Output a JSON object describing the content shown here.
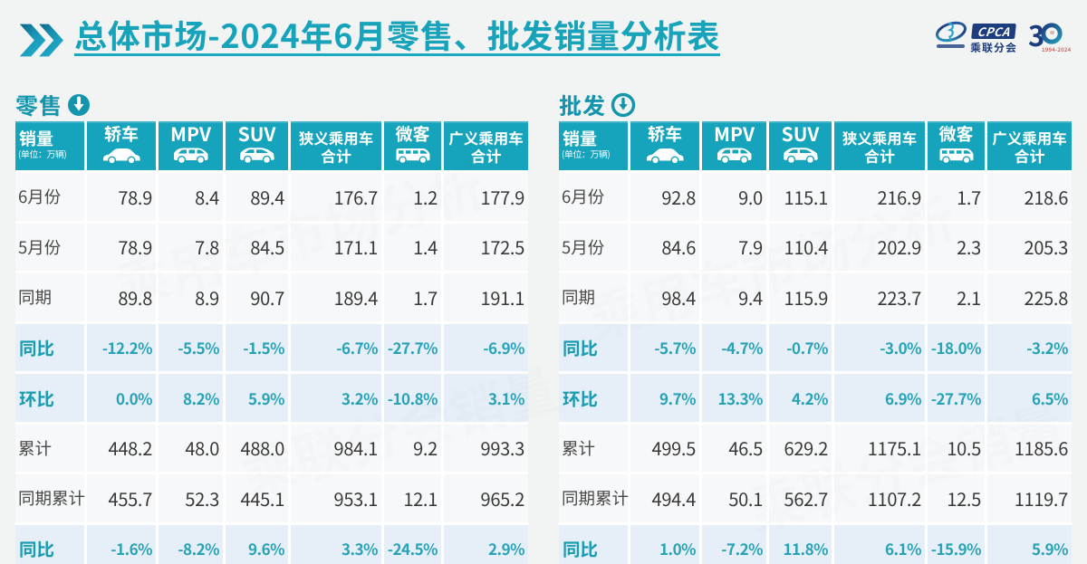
{
  "page": {
    "background": "#f2f3f3",
    "accent_teal": "#16a3bc",
    "highlight_row_bg": "#e6eff7",
    "navy": "#1c3c7c"
  },
  "header": {
    "title_prefix": "总体市场",
    "title_rest": "-2024年6月零售、批发销量分析表"
  },
  "logos": {
    "cpca": {
      "acronym": "CPCA",
      "branch": "乘联分会"
    },
    "anniversary": {
      "digit": "3",
      "years": "1994-2024"
    }
  },
  "tables": [
    {
      "section_label": "零售",
      "columns": [
        {
          "title": "销量",
          "subtitle": "(单位：万辆)"
        },
        {
          "title": "轿车",
          "icon": "sedan-icon"
        },
        {
          "title": "MPV",
          "icon": "mpv-icon"
        },
        {
          "title": "SUV",
          "icon": "suv-icon"
        },
        {
          "title": "狭义乘用车",
          "title2": "合计"
        },
        {
          "title": "微客",
          "icon": "minibus-icon"
        },
        {
          "title": "广义乘用车",
          "title2": "合计"
        }
      ],
      "rows": [
        {
          "label": "6月份",
          "highlight": false,
          "values": [
            "78.9",
            "8.4",
            "89.4",
            "176.7",
            "1.2",
            "177.9"
          ]
        },
        {
          "label": "5月份",
          "highlight": false,
          "values": [
            "78.9",
            "7.8",
            "84.5",
            "171.1",
            "1.4",
            "172.5"
          ]
        },
        {
          "label": "同期",
          "highlight": false,
          "values": [
            "89.8",
            "8.9",
            "90.7",
            "189.4",
            "1.7",
            "191.1"
          ]
        },
        {
          "label": "同比",
          "highlight": true,
          "values": [
            "-12.2%",
            "-5.5%",
            "-1.5%",
            "-6.7%",
            "-27.7%",
            "-6.9%"
          ]
        },
        {
          "label": "环比",
          "highlight": true,
          "values": [
            "0.0%",
            "8.2%",
            "5.9%",
            "3.2%",
            "-10.8%",
            "3.1%"
          ]
        },
        {
          "label": "累计",
          "highlight": false,
          "values": [
            "448.2",
            "48.0",
            "488.0",
            "984.1",
            "9.2",
            "993.3"
          ]
        },
        {
          "label": "同期累计",
          "highlight": false,
          "values": [
            "455.7",
            "52.3",
            "445.1",
            "953.1",
            "12.1",
            "965.2"
          ]
        },
        {
          "label": "同比",
          "highlight": true,
          "values": [
            "-1.6%",
            "-8.2%",
            "9.6%",
            "3.3%",
            "-24.5%",
            "2.9%"
          ]
        }
      ]
    },
    {
      "section_label": "批发",
      "columns": [
        {
          "title": "销量",
          "subtitle": "(单位：万辆)"
        },
        {
          "title": "轿车",
          "icon": "sedan-icon"
        },
        {
          "title": "MPV",
          "icon": "mpv-icon"
        },
        {
          "title": "SUV",
          "icon": "suv-icon"
        },
        {
          "title": "狭义乘用车",
          "title2": "合计"
        },
        {
          "title": "微客",
          "icon": "minibus-icon"
        },
        {
          "title": "广义乘用车",
          "title2": "合计"
        }
      ],
      "rows": [
        {
          "label": "6月份",
          "highlight": false,
          "values": [
            "92.8",
            "9.0",
            "115.1",
            "216.9",
            "1.7",
            "218.6"
          ]
        },
        {
          "label": "5月份",
          "highlight": false,
          "values": [
            "84.6",
            "7.9",
            "110.4",
            "202.9",
            "2.3",
            "205.3"
          ]
        },
        {
          "label": "同期",
          "highlight": false,
          "values": [
            "98.4",
            "9.4",
            "115.9",
            "223.7",
            "2.1",
            "225.8"
          ]
        },
        {
          "label": "同比",
          "highlight": true,
          "values": [
            "-5.7%",
            "-4.7%",
            "-0.7%",
            "-3.0%",
            "-18.0%",
            "-3.2%"
          ]
        },
        {
          "label": "环比",
          "highlight": true,
          "values": [
            "9.7%",
            "13.3%",
            "4.2%",
            "6.9%",
            "-27.7%",
            "6.5%"
          ]
        },
        {
          "label": "累计",
          "highlight": false,
          "values": [
            "499.5",
            "46.5",
            "629.2",
            "1175.1",
            "10.5",
            "1185.6"
          ]
        },
        {
          "label": "同期累计",
          "highlight": false,
          "values": [
            "494.4",
            "50.1",
            "562.7",
            "1107.2",
            "12.5",
            "1119.7"
          ]
        },
        {
          "label": "同比",
          "highlight": true,
          "values": [
            "1.0%",
            "-7.2%",
            "11.8%",
            "6.1%",
            "-15.9%",
            "5.9%"
          ]
        }
      ]
    }
  ]
}
